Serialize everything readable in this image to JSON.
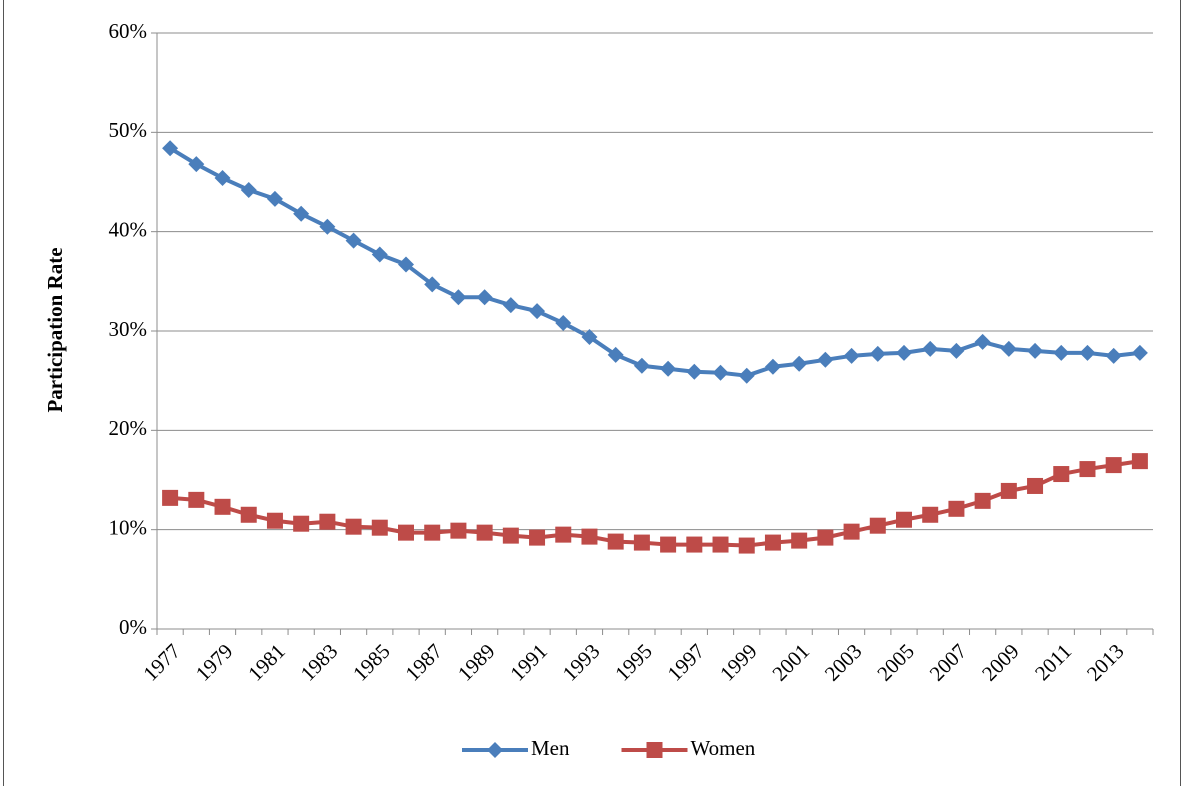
{
  "chart_data": {
    "type": "line",
    "y_label": "Participation Rate",
    "categories": [
      "1977",
      null,
      "1979",
      null,
      "1981",
      null,
      "1983",
      null,
      "1985",
      null,
      "1987",
      null,
      "1989",
      null,
      "1991",
      null,
      "1993",
      null,
      "1995",
      null,
      "1997",
      null,
      "1999",
      null,
      "2001",
      null,
      "2003",
      null,
      "2005",
      null,
      "2007",
      null,
      "2009",
      null,
      "2011",
      null,
      "2013",
      null
    ],
    "series": [
      {
        "name": "Men",
        "color": "#4a7ebb",
        "marker": "diamond",
        "values": [
          48.4,
          46.8,
          45.4,
          44.2,
          43.3,
          41.8,
          40.5,
          39.1,
          37.7,
          36.7,
          34.7,
          33.4,
          33.4,
          32.6,
          32.0,
          30.8,
          29.4,
          27.6,
          26.5,
          26.2,
          25.9,
          25.8,
          25.5,
          26.4,
          26.7,
          27.1,
          27.5,
          27.7,
          27.8,
          28.2,
          28.0,
          28.9,
          28.2,
          28.0,
          27.8,
          27.8,
          27.5,
          27.8
        ]
      },
      {
        "name": "Women",
        "color": "#be4b48",
        "marker": "square",
        "values": [
          13.2,
          13.0,
          12.3,
          11.5,
          10.9,
          10.6,
          10.8,
          10.3,
          10.2,
          9.7,
          9.7,
          9.9,
          9.7,
          9.4,
          9.2,
          9.5,
          9.3,
          8.8,
          8.7,
          8.5,
          8.5,
          8.5,
          8.4,
          8.7,
          8.9,
          9.2,
          9.8,
          10.4,
          11.0,
          11.5,
          12.1,
          12.9,
          13.9,
          14.4,
          15.6,
          16.1,
          16.5,
          16.9
        ]
      }
    ],
    "ylim": [
      0,
      60
    ],
    "yticks": [
      {
        "value": 0,
        "label": "0%"
      },
      {
        "value": 10,
        "label": "10%"
      },
      {
        "value": 20,
        "label": "20%"
      },
      {
        "value": 30,
        "label": "30%"
      },
      {
        "value": 40,
        "label": "40%"
      },
      {
        "value": 50,
        "label": "50%"
      },
      {
        "value": 60,
        "label": "60%"
      }
    ],
    "grid": true,
    "legend": "bottom"
  }
}
